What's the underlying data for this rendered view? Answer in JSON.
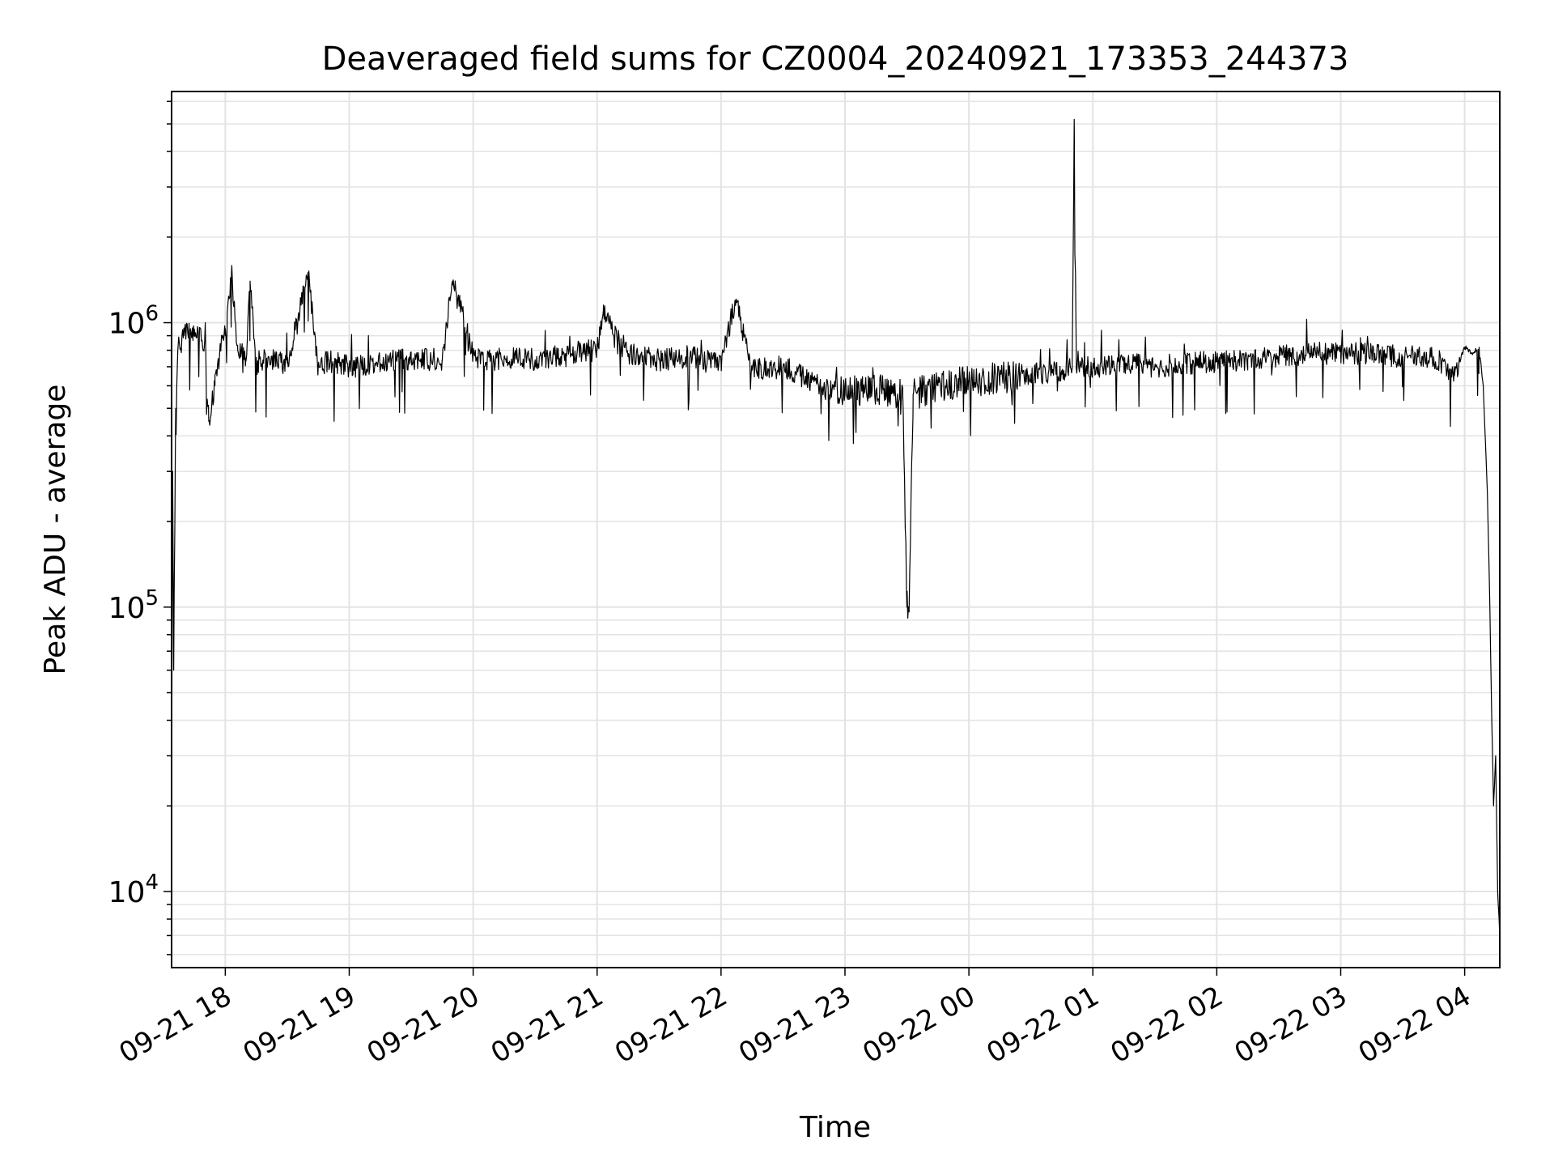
{
  "chart_data": {
    "type": "line",
    "title": "Deaveraged field sums for CZ0004_20240921_173353_244373",
    "xlabel": "Time",
    "ylabel": "Peak ADU - average",
    "y_scale": "log",
    "ylim": [
      5400,
      6500000
    ],
    "xlim": [
      "2024-09-21 17:34",
      "2024-09-22 04:17"
    ],
    "grid": true,
    "legend": "none",
    "x_tick_labels": [
      "09-21 18",
      "09-21 19",
      "09-21 20",
      "09-21 21",
      "09-21 22",
      "09-21 23",
      "09-22 00",
      "09-22 01",
      "09-22 02",
      "09-22 03",
      "09-22 04"
    ],
    "x_tick_times": [
      "2024-09-21 18:00",
      "2024-09-21 19:00",
      "2024-09-21 20:00",
      "2024-09-21 21:00",
      "2024-09-21 22:00",
      "2024-09-21 23:00",
      "2024-09-22 00:00",
      "2024-09-22 01:00",
      "2024-09-22 02:00",
      "2024-09-22 03:00",
      "2024-09-22 04:00"
    ],
    "y_ticks": [
      {
        "base": "10",
        "exp": "4",
        "value": 10000
      },
      {
        "base": "10",
        "exp": "5",
        "value": 100000
      },
      {
        "base": "10",
        "exp": "6",
        "value": 1000000
      }
    ],
    "line_color": "#000000",
    "series": [
      {
        "x": [
          "2024-09-21 17:34",
          "2024-09-21 17:34:30",
          "2024-09-21 17:35",
          "2024-09-21 17:36",
          "2024-09-21 17:37",
          "2024-09-21 17:40",
          "2024-09-21 17:45",
          "2024-09-21 17:50",
          "2024-09-21 17:52",
          "2024-09-21 17:55",
          "2024-09-21 17:58",
          "2024-09-21 18:00",
          "2024-09-21 18:03",
          "2024-09-21 18:06",
          "2024-09-21 18:10",
          "2024-09-21 18:12",
          "2024-09-21 18:15",
          "2024-09-21 18:20",
          "2024-09-21 18:30",
          "2024-09-21 18:40",
          "2024-09-21 18:45",
          "2024-09-21 18:50",
          "2024-09-21 19:00",
          "2024-09-21 19:15",
          "2024-09-21 19:30",
          "2024-09-21 19:45",
          "2024-09-21 19:50",
          "2024-09-21 20:00",
          "2024-09-21 20:05",
          "2024-09-21 20:15",
          "2024-09-21 20:30",
          "2024-09-21 20:45",
          "2024-09-21 21:00",
          "2024-09-21 21:03",
          "2024-09-21 21:15",
          "2024-09-21 21:30",
          "2024-09-21 21:45",
          "2024-09-21 22:00",
          "2024-09-21 22:07",
          "2024-09-21 22:15",
          "2024-09-21 22:30",
          "2024-09-21 22:45",
          "2024-09-21 23:00",
          "2024-09-21 23:15",
          "2024-09-21 23:28",
          "2024-09-21 23:30",
          "2024-09-21 23:31",
          "2024-09-21 23:33",
          "2024-09-21 23:45",
          "2024-09-22 00:00",
          "2024-09-22 00:15",
          "2024-09-22 00:30",
          "2024-09-22 00:45",
          "2024-09-22 00:50",
          "2024-09-22 00:51",
          "2024-09-22 00:52",
          "2024-09-22 01:00",
          "2024-09-22 01:15",
          "2024-09-22 01:30",
          "2024-09-22 01:45",
          "2024-09-22 02:00",
          "2024-09-22 02:15",
          "2024-09-22 02:30",
          "2024-09-22 02:45",
          "2024-09-22 03:00",
          "2024-09-22 03:15",
          "2024-09-22 03:30",
          "2024-09-22 03:45",
          "2024-09-22 03:55",
          "2024-09-22 04:00",
          "2024-09-22 04:04",
          "2024-09-22 04:07",
          "2024-09-22 04:09",
          "2024-09-22 04:11",
          "2024-09-22 04:12",
          "2024-09-22 04:13",
          "2024-09-22 04:14",
          "2024-09-22 04:15",
          "2024-09-22 04:16",
          "2024-09-22 04:17"
        ],
        "y": [
          25000,
          300000,
          60000,
          500000,
          800000,
          900000,
          950000,
          850000,
          450000,
          600000,
          850000,
          900000,
          1500000,
          800000,
          750000,
          1400000,
          700000,
          750000,
          720000,
          1500000,
          700000,
          740000,
          700000,
          720000,
          750000,
          740000,
          1400000,
          780000,
          720000,
          760000,
          740000,
          780000,
          800000,
          1100000,
          780000,
          740000,
          760000,
          720000,
          1200000,
          680000,
          700000,
          620000,
          560000,
          580000,
          560000,
          100000,
          100000,
          560000,
          600000,
          620000,
          640000,
          660000,
          680000,
          690000,
          5000000,
          690000,
          700000,
          720000,
          700000,
          720000,
          730000,
          740000,
          760000,
          780000,
          780000,
          780000,
          760000,
          760000,
          650000,
          820000,
          780000,
          820000,
          600000,
          250000,
          120000,
          45000,
          20000,
          30000,
          10000,
          7000
        ]
      }
    ]
  }
}
